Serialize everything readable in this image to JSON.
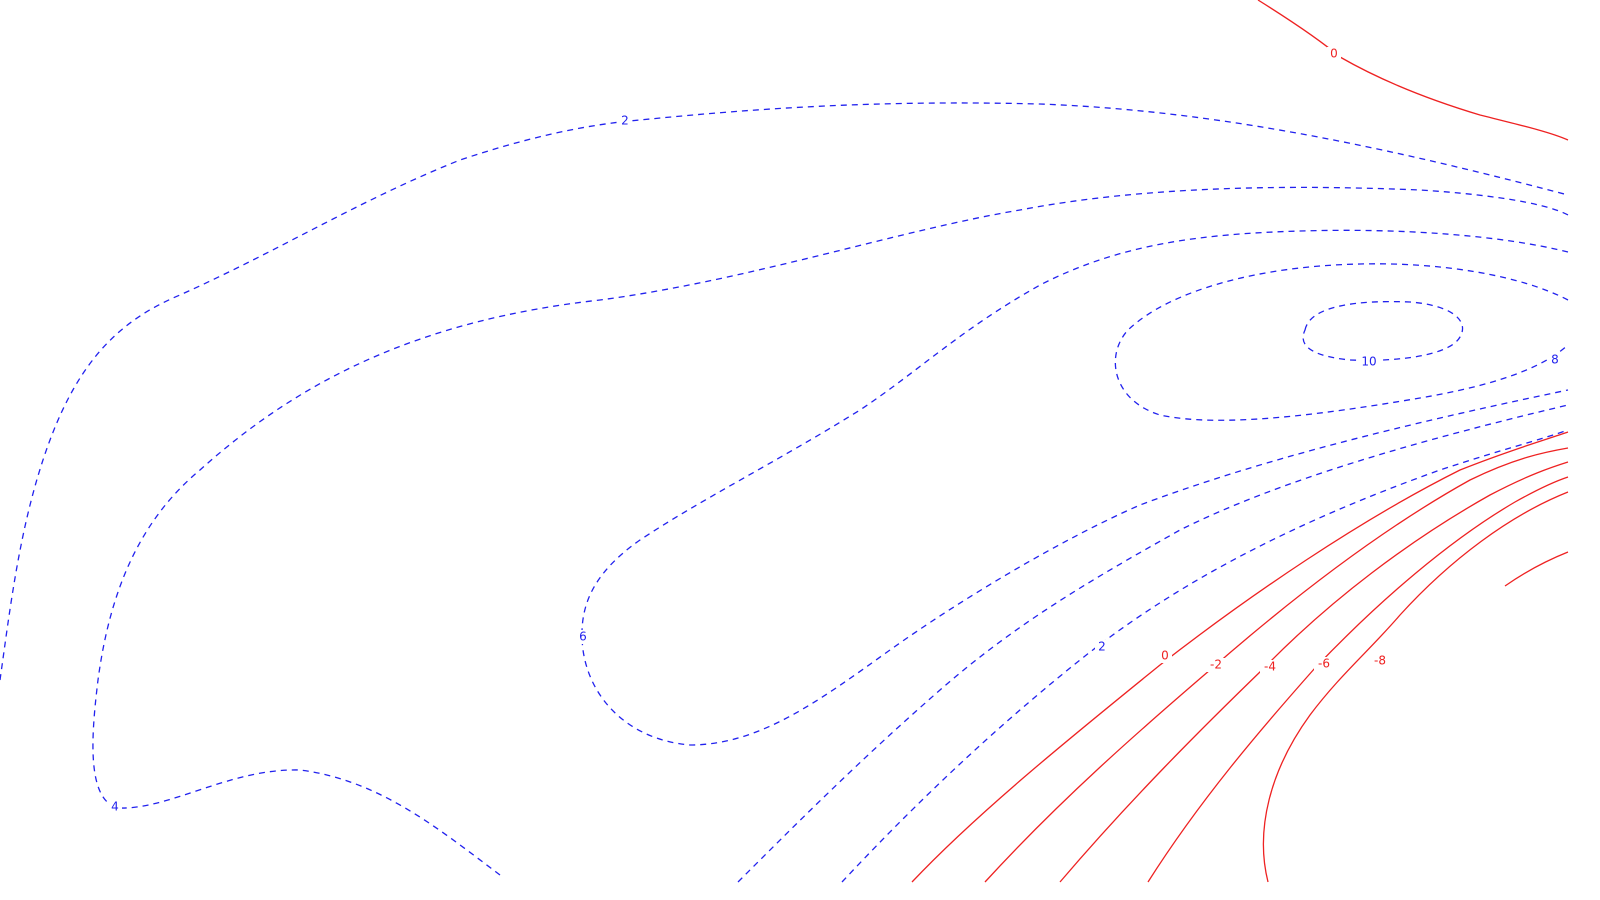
{
  "chart_data": {
    "type": "contour",
    "title": "",
    "xlabel": "",
    "ylabel": "",
    "positive_color": "#2222ee",
    "negative_color": "#ee2222",
    "positive_style": "dashed",
    "negative_style": "solid",
    "contour_levels": [
      {
        "level": 10,
        "sign": "positive",
        "label": "10"
      },
      {
        "level": 8,
        "sign": "positive",
        "label": "8"
      },
      {
        "level": 6,
        "sign": "positive",
        "label": "6"
      },
      {
        "level": 4,
        "sign": "positive",
        "label": "4"
      },
      {
        "level": 2,
        "sign": "positive",
        "label": "2"
      },
      {
        "level": 0,
        "sign": "zero",
        "label": "0"
      },
      {
        "level": -2,
        "sign": "negative",
        "label": "-2"
      },
      {
        "level": -4,
        "sign": "negative",
        "label": "-4"
      },
      {
        "level": -6,
        "sign": "negative",
        "label": "-6"
      },
      {
        "level": -8,
        "sign": "negative",
        "label": "-8"
      }
    ]
  }
}
